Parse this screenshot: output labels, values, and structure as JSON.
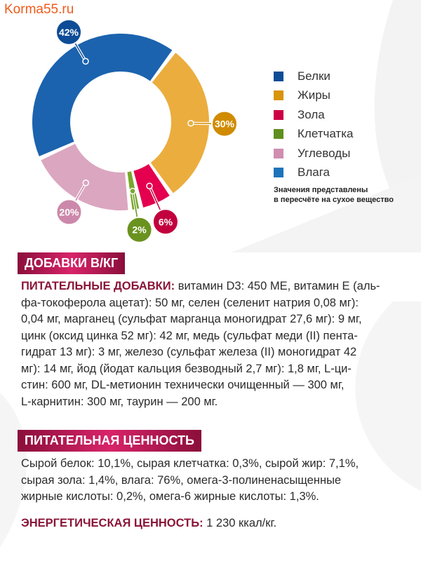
{
  "site": "Korma55.ru",
  "chart_data": {
    "type": "pie",
    "variant": "donut",
    "slices": [
      {
        "name": "Жиры",
        "value": 30,
        "label": "30%",
        "color": "#ebad3e",
        "badge": "#d08b00"
      },
      {
        "name": "Зола",
        "value": 6,
        "label": "6%",
        "color": "#e4004e",
        "badge": "#c2003e"
      },
      {
        "name": "Клетчатка",
        "value": 2,
        "label": "2%",
        "color": "#78a82a",
        "badge": "#6a921f"
      },
      {
        "name": "Углеводы",
        "value": 20,
        "label": "20%",
        "color": "#dba6c0",
        "badge": "#cc88aa"
      },
      {
        "name": "Белки",
        "value": 42,
        "label": "42%",
        "color": "#1b63ae",
        "badge": "#0d4c96"
      }
    ],
    "legend": [
      {
        "label": "Белки",
        "color": "#0d4c96"
      },
      {
        "label": "Жиры",
        "color": "#d8940a"
      },
      {
        "label": "Зола",
        "color": "#cc0044"
      },
      {
        "label": "Клетчатка",
        "color": "#5f8f1e"
      },
      {
        "label": "Углеводы",
        "color": "#d08db0"
      },
      {
        "label": "Влага",
        "color": "#1d74bb"
      }
    ],
    "legend_position": "right",
    "note": [
      "Значения представлены",
      "в пересчёте на сухое вещество"
    ]
  },
  "additives": {
    "title": "ДОБАВКИ В/КГ",
    "label": "ПИТАТЕЛЬНЫЕ ДОБАВКИ:",
    "lines": [
      " витамин D3: 450 МЕ, витамин Е (аль-",
      "фа-токоферола ацетат): 50 мг, селен (селенит натрия 0,08 мг):",
      "0,04 мг, марганец (сульфат марганца моногидрат 27,6 мг): 9 мг,",
      "цинк (оксид цинка 52 мг): 42 мг, медь (сульфат меди (II) пента-",
      "гидрат 13 мг): 3 мг, железо (сульфат железа (II) моногидрат 42",
      "мг): 14 мг, йод (йодат кальция безводный 2,7 мг): 1,8 мг, L-ци-",
      "стин: 600 мг, DL-метионин технически очищенный — 300 мг,",
      "L-карнитин: 300 мг, таурин — 200 мг."
    ]
  },
  "nutrition": {
    "title": "ПИТАТЕЛЬНАЯ ЦЕННОСТЬ",
    "lines": [
      "Сырой белок: 10,1%, сырая клетчатка: 0,3%, сырой жир: 7,1%,",
      "сырая зола: 1,4%, влага: 76%, омега-3-полиненасыщенные",
      "жирные кислоты: 0,2%, омега-6 жирные кислоты: 1,3%."
    ],
    "energy_label": "ЭНЕРГЕТИЧЕСКАЯ ЦЕННОСТЬ:",
    "energy_value": " 1 230 ккал/кг."
  }
}
